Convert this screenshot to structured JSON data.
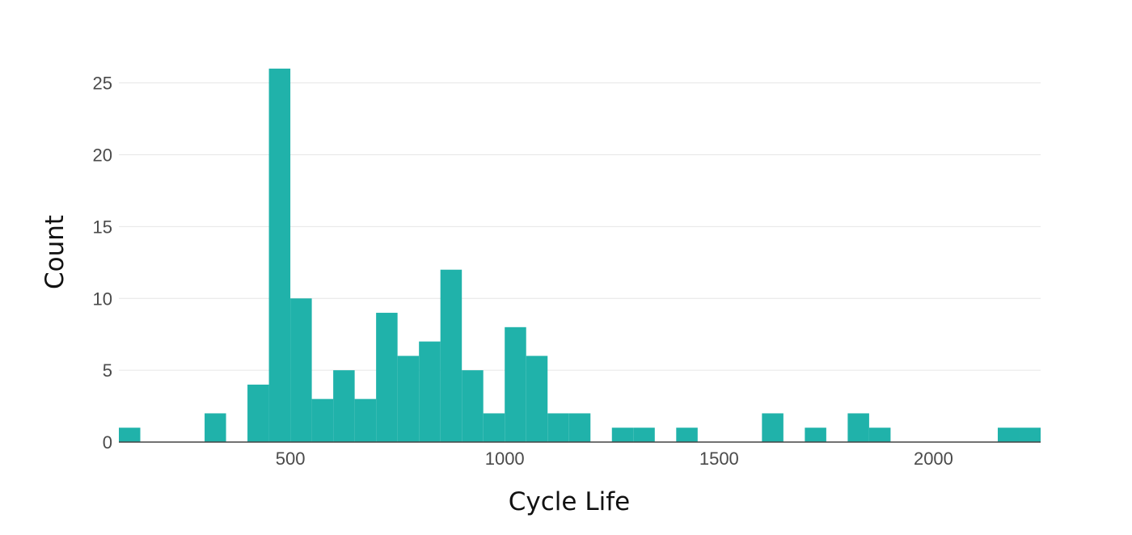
{
  "chart_data": {
    "type": "bar",
    "histogram": true,
    "title": "",
    "xlabel": "Cycle Life",
    "ylabel": "Count",
    "xlim": [
      100,
      2250
    ],
    "ylim": [
      0,
      26.5
    ],
    "bin_width": 50,
    "x_ticks": [
      500,
      1000,
      1500,
      2000
    ],
    "x_tick_labels": [
      "500",
      "1000",
      "1500",
      "2000"
    ],
    "y_ticks": [
      0,
      5,
      10,
      15,
      20,
      25
    ],
    "y_tick_labels": [
      "0",
      "5",
      "10",
      "15",
      "20",
      "25"
    ],
    "grid": true,
    "legend": "none",
    "color": "#20b2aa",
    "bins": [
      {
        "start": 100,
        "end": 150,
        "count": 1
      },
      {
        "start": 300,
        "end": 350,
        "count": 2
      },
      {
        "start": 400,
        "end": 450,
        "count": 4
      },
      {
        "start": 450,
        "end": 500,
        "count": 26
      },
      {
        "start": 500,
        "end": 550,
        "count": 10
      },
      {
        "start": 550,
        "end": 600,
        "count": 3
      },
      {
        "start": 600,
        "end": 650,
        "count": 5
      },
      {
        "start": 650,
        "end": 700,
        "count": 3
      },
      {
        "start": 700,
        "end": 750,
        "count": 9
      },
      {
        "start": 750,
        "end": 800,
        "count": 6
      },
      {
        "start": 800,
        "end": 850,
        "count": 7
      },
      {
        "start": 850,
        "end": 900,
        "count": 12
      },
      {
        "start": 900,
        "end": 950,
        "count": 5
      },
      {
        "start": 950,
        "end": 1000,
        "count": 2
      },
      {
        "start": 1000,
        "end": 1050,
        "count": 8
      },
      {
        "start": 1050,
        "end": 1100,
        "count": 6
      },
      {
        "start": 1100,
        "end": 1150,
        "count": 2
      },
      {
        "start": 1150,
        "end": 1200,
        "count": 2
      },
      {
        "start": 1250,
        "end": 1300,
        "count": 1
      },
      {
        "start": 1300,
        "end": 1350,
        "count": 1
      },
      {
        "start": 1400,
        "end": 1450,
        "count": 1
      },
      {
        "start": 1600,
        "end": 1650,
        "count": 2
      },
      {
        "start": 1700,
        "end": 1750,
        "count": 1
      },
      {
        "start": 1800,
        "end": 1850,
        "count": 2
      },
      {
        "start": 1850,
        "end": 1900,
        "count": 1
      },
      {
        "start": 2150,
        "end": 2200,
        "count": 1
      },
      {
        "start": 2200,
        "end": 2250,
        "count": 1
      }
    ]
  }
}
